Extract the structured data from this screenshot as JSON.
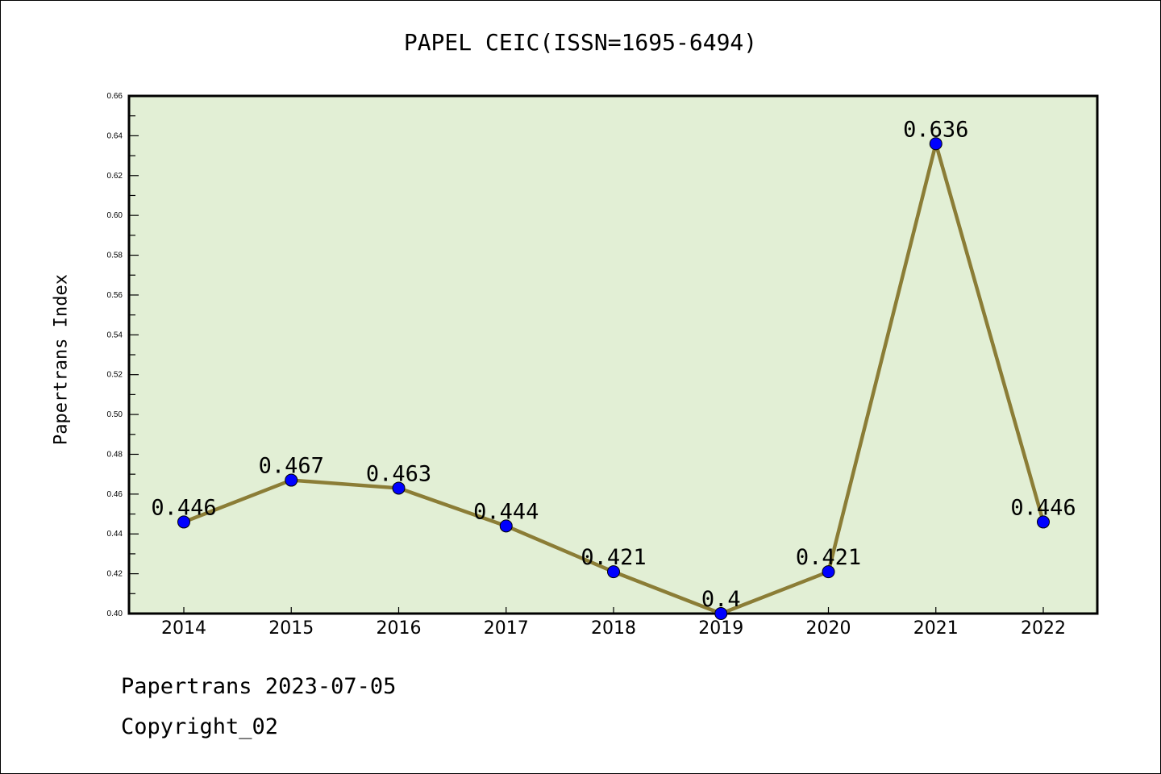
{
  "chart_data": {
    "type": "line",
    "title": "PAPEL CEIC(ISSN=1695-6494)",
    "xlabel": "",
    "ylabel": "Papertrans Index",
    "categories": [
      "2014",
      "2015",
      "2016",
      "2017",
      "2018",
      "2019",
      "2020",
      "2021",
      "2022"
    ],
    "values": [
      0.446,
      0.467,
      0.463,
      0.444,
      0.421,
      0.4,
      0.421,
      0.636,
      0.446
    ],
    "data_labels": [
      "0.446",
      "0.467",
      "0.463",
      "0.444",
      "0.421",
      "0.4",
      "0.421",
      "0.636",
      "0.446"
    ],
    "ylim": [
      0.4,
      0.66
    ],
    "yticks": [
      "0.40",
      "0.42",
      "0.44",
      "0.46",
      "0.48",
      "0.50",
      "0.52",
      "0.54",
      "0.56",
      "0.58",
      "0.60",
      "0.62",
      "0.64",
      "0.66"
    ],
    "grid": false,
    "colors": {
      "line": "#8b7d36",
      "marker": "#0000ff",
      "background": "#e2efd5"
    }
  },
  "footer": {
    "line1": "Papertrans 2023-07-05",
    "line2": "Copyright_02"
  }
}
